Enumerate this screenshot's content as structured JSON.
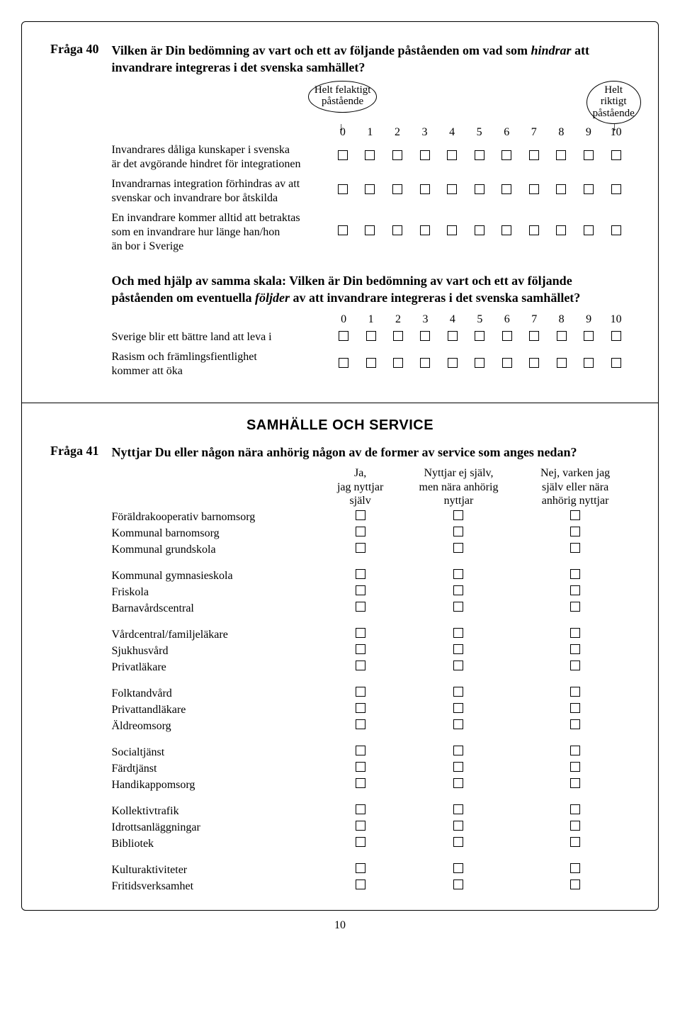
{
  "q40": {
    "label": "Fråga 40",
    "title_pre": "Vilken är Din bedömning av vart och ett av följande påståenden om vad som ",
    "title_em": "hindrar",
    "title_post": " att invandrare integreras i det svenska samhället?",
    "anchor_left_l1": "Helt felaktigt",
    "anchor_left_l2": "påstående",
    "anchor_right_l1": "Helt riktigt",
    "anchor_right_l2": "påstående",
    "scale": [
      "0",
      "1",
      "2",
      "3",
      "4",
      "5",
      "6",
      "7",
      "8",
      "9",
      "10"
    ],
    "rows_a": [
      "Invandrares dåliga kunskaper i svenska\n är det avgörande hindret för integrationen",
      "Invandrarnas integration förhindras av att\n svenskar och invandrare bor åtskilda",
      "En invandrare kommer alltid att betraktas\n som en invandrare hur länge han/hon\n än bor i Sverige"
    ],
    "sub_pre": "Och med hjälp av samma skala: Vilken är Din bedömning av vart och ett av följande påståenden om eventuella ",
    "sub_em": "följder",
    "sub_post": " av att invandrare integreras i det svenska samhället?",
    "rows_b": [
      "Sverige blir ett bättre land att leva i",
      "Rasism och främlingsfientlighet\n kommer att öka"
    ]
  },
  "section_title": "SAMHÄLLE OCH SERVICE",
  "q41": {
    "label": "Fråga 41",
    "title": "Nyttjar Du eller någon nära anhörig någon av de former av service som anges nedan?",
    "col_headers": [
      "Ja,\njag nyttjar\nsjälv",
      "Nyttjar ej själv,\nmen nära anhörig\nnyttjar",
      "Nej, varken jag\nsjälv eller nära\nanhörig nyttjar"
    ],
    "groups": [
      [
        "Föräldrakooperativ barnomsorg",
        "Kommunal barnomsorg",
        "Kommunal grundskola"
      ],
      [
        "Kommunal gymnasieskola",
        "Friskola",
        "Barnavårdscentral"
      ],
      [
        "Vårdcentral/familjeläkare",
        "Sjukhusvård",
        "Privatläkare"
      ],
      [
        "Folktandvård",
        "Privattandläkare",
        "Äldreomsorg"
      ],
      [
        "Socialtjänst",
        "Färdtjänst",
        "Handikappomsorg"
      ],
      [
        "Kollektivtrafik",
        "Idrottsanläggningar",
        "Bibliotek"
      ],
      [
        "Kulturaktiviteter",
        "Fritidsverksamhet"
      ]
    ]
  },
  "page_number": "10"
}
